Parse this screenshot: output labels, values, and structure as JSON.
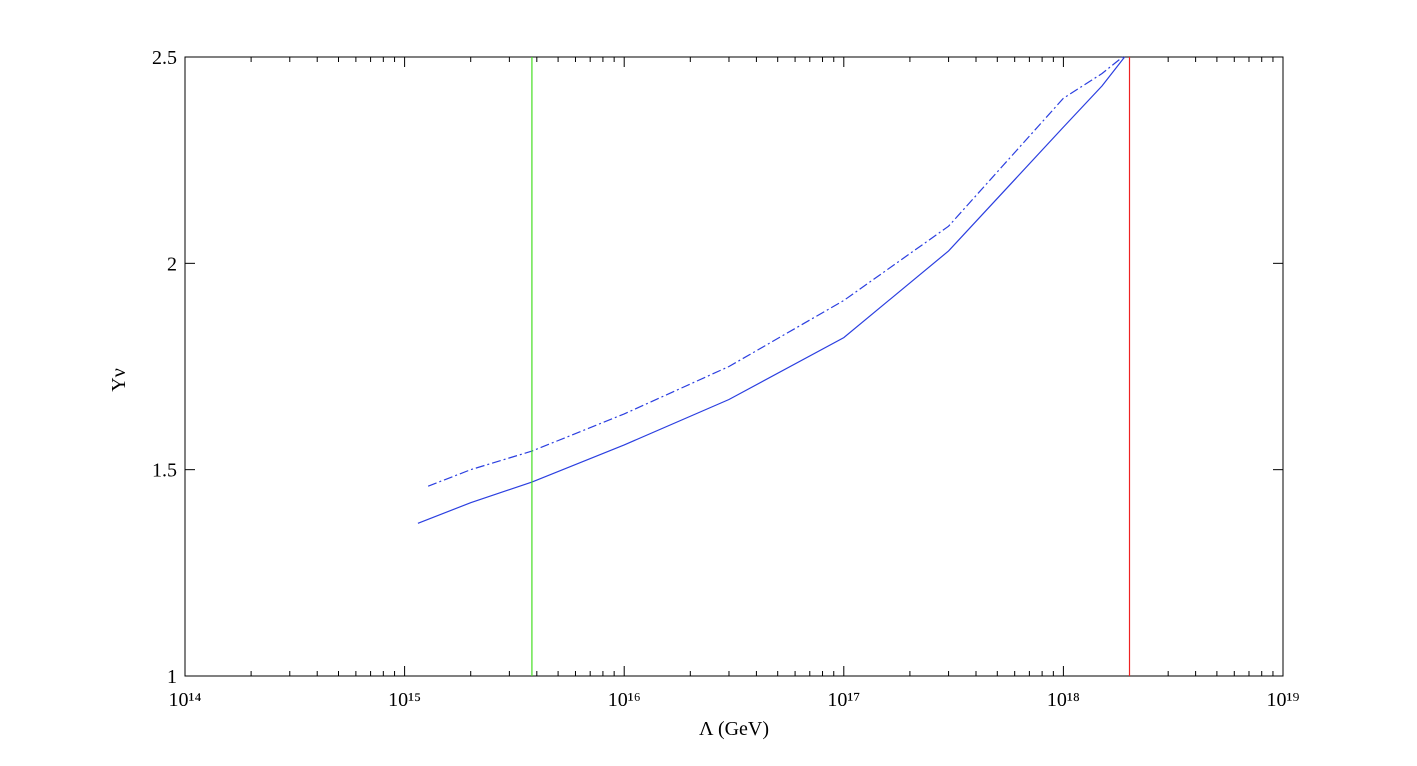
{
  "chart_data": {
    "type": "line",
    "xlabel": "Λ (GeV)",
    "ylabel": "Yν",
    "xscale": "log",
    "xlim": [
      100000000000000.0,
      1e+19
    ],
    "ylim": [
      1,
      2.5
    ],
    "xticks": [
      {
        "value": 100000000000000.0,
        "label": "10¹⁴"
      },
      {
        "value": 1000000000000000.0,
        "label": "10¹⁵"
      },
      {
        "value": 1e+16,
        "label": "10¹⁶"
      },
      {
        "value": 1e+17,
        "label": "10¹⁷"
      },
      {
        "value": 1e+18,
        "label": "10¹⁸"
      },
      {
        "value": 1e+19,
        "label": "10¹⁹"
      }
    ],
    "xminorticks": [
      200000000000000.0,
      300000000000000.0,
      400000000000000.0,
      500000000000000.0,
      600000000000000.0,
      700000000000000.0,
      800000000000000.0,
      900000000000000.0,
      2000000000000000.0,
      3000000000000000.0,
      4000000000000000.0,
      5000000000000000.0,
      6000000000000000.0,
      7000000000000000.0,
      8000000000000000.0,
      9000000000000000.0,
      2e+16,
      3e+16,
      4e+16,
      5e+16,
      6e+16,
      7e+16,
      8e+16,
      9e+16,
      2e+17,
      3e+17,
      4e+17,
      5e+17,
      6e+17,
      7e+17,
      8e+17,
      9e+17,
      2e+18,
      3e+18,
      4e+18,
      5e+18,
      6e+18,
      7e+18,
      8e+18,
      9e+18
    ],
    "yticks": [
      1,
      1.5,
      2,
      2.5
    ],
    "series": [
      {
        "color": "#2b3fe0",
        "dash": "solid",
        "x": [
          1150000000000000.0,
          2000000000000000.0,
          3800000000000000.0,
          1e+16,
          3e+16,
          1e+17,
          3e+17,
          1e+18,
          1.5e+18,
          1.9e+18
        ],
        "values": [
          1.37,
          1.42,
          1.47,
          1.56,
          1.67,
          1.82,
          2.03,
          2.33,
          2.43,
          2.5
        ]
      },
      {
        "color": "#2b3fe0",
        "dash": "dashdot",
        "x": [
          1280000000000000.0,
          2000000000000000.0,
          3800000000000000.0,
          1e+16,
          3e+16,
          1e+17,
          3e+17,
          1e+18,
          1.5e+18,
          1.86e+18
        ],
        "values": [
          1.46,
          1.5,
          1.545,
          1.635,
          1.75,
          1.91,
          2.09,
          2.4,
          2.46,
          2.5
        ]
      },
      {
        "color": "#44dd22",
        "dash": "solid",
        "x": [
          3800000000000000.0,
          3800000000000000.0
        ],
        "values": [
          1,
          2.5
        ]
      },
      {
        "color": "#ee2222",
        "dash": "solid",
        "x": [
          2e+18,
          2e+18
        ],
        "values": [
          1,
          2.5
        ]
      }
    ]
  }
}
